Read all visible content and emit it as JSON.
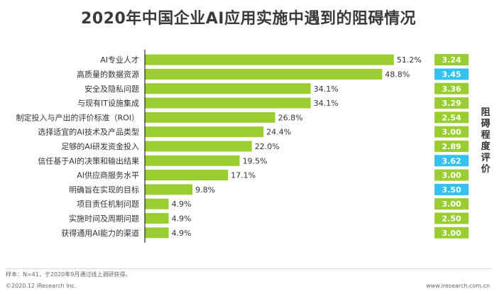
{
  "title": "2020年中国企业AI应用实施中遇到的阻碍情况",
  "rating_axis_label": "阻碍程度评价",
  "footnote": "样本：N=41，于2020年9月通过线上调研获得。",
  "copyright": "©2020.12 iResearch Inc.",
  "website": "www.iresearch.com.cn",
  "colors": {
    "bar": "#9ACD32",
    "rating_default": "#9ACD32",
    "rating_highlight": "#33C1F0",
    "axis": "#000000"
  },
  "chart_data": {
    "type": "bar",
    "orientation": "horizontal",
    "categories": [
      "AI专业人才",
      "高质量的数据资源",
      "安全及隐私问题",
      "与现有IT设施集成",
      "制定投入与产出的评价标准（ROI）",
      "选择适宜的AI技术及产品类型",
      "足够的AI研发资金投入",
      "信任基于AI的决策和输出结果",
      "AI供应商服务水平",
      "明确旨在实现的目标",
      "项目责任机制问题",
      "实施时间及周期问题",
      "获得通用AI能力的渠道"
    ],
    "series": [
      {
        "values": [
          51.2,
          48.8,
          34.1,
          34.1,
          26.8,
          24.4,
          22.0,
          19.5,
          17.1,
          9.8,
          4.9,
          4.9,
          4.9
        ],
        "labels": [
          "51.2%",
          "48.8%",
          "34.1%",
          "34.1%",
          "26.8%",
          "24.4%",
          "22.0%",
          "19.5%",
          "17.1%",
          "9.8%",
          "4.9%",
          "4.9%",
          "4.9%"
        ]
      }
    ],
    "ratings": [
      "3.24",
      "3.45",
      "3.36",
      "3.29",
      "2.54",
      "3.00",
      "2.89",
      "3.62",
      "3.00",
      "3.50",
      "3.00",
      "2.50",
      "3.00"
    ],
    "rating_highlighted": [
      false,
      true,
      false,
      false,
      false,
      false,
      false,
      true,
      false,
      true,
      false,
      false,
      false
    ],
    "xlim": [
      0,
      60
    ],
    "grid": false
  }
}
